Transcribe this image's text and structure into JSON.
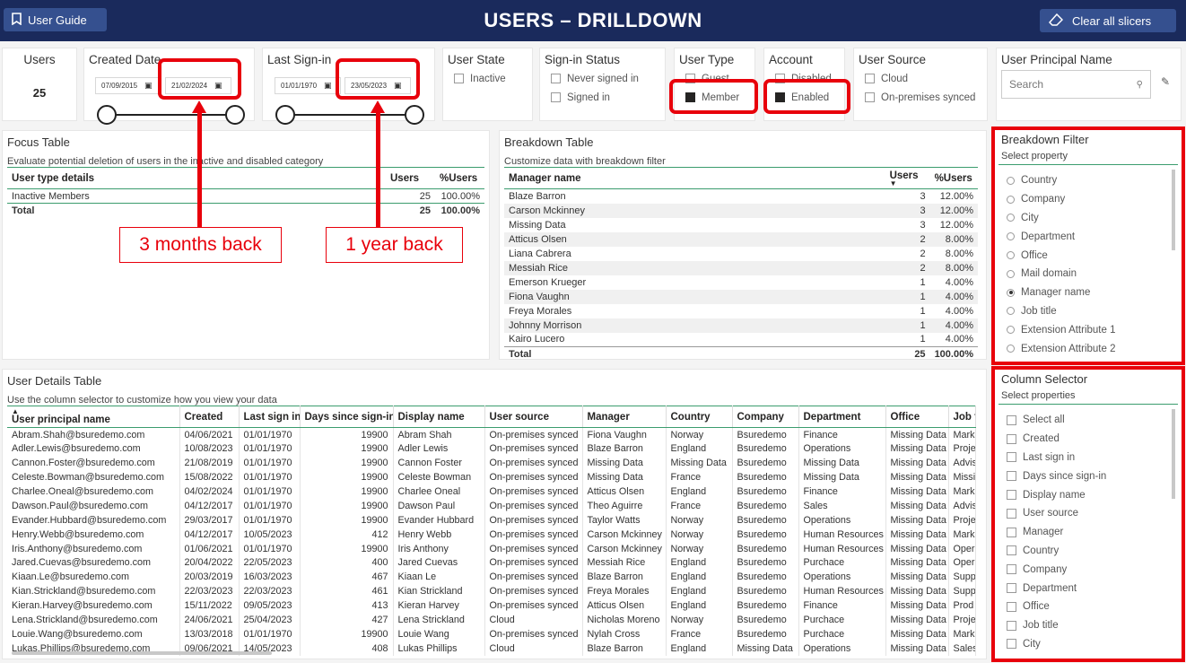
{
  "header": {
    "guide": "User Guide",
    "title": "USERS – DRILLDOWN",
    "clear": "Clear all slicers"
  },
  "users": {
    "title": "Users",
    "count": "25"
  },
  "created": {
    "title": "Created Date",
    "from": "07/09/2015",
    "to": "21/02/2024"
  },
  "lastsign": {
    "title": "Last Sign-in",
    "from": "01/01/1970",
    "to": "23/05/2023"
  },
  "userstate": {
    "title": "User State",
    "opts": [
      "Inactive"
    ]
  },
  "signin": {
    "title": "Sign-in Status",
    "opts": [
      "Never signed in",
      "Signed in"
    ]
  },
  "usertype": {
    "title": "User Type",
    "opts": [
      "Guest",
      "Member"
    ]
  },
  "account": {
    "title": "Account",
    "opts": [
      "Disabled",
      "Enabled"
    ]
  },
  "source": {
    "title": "User Source",
    "opts": [
      "Cloud",
      "On-premises synced"
    ]
  },
  "upn": {
    "title": "User Principal Name",
    "placeholder": "Search"
  },
  "callouts": {
    "c1": "3 months back",
    "c2": "1 year back"
  },
  "focus": {
    "title": "Focus Table",
    "sub": "Evaluate potential deletion of users in the inactive and disabled category",
    "cols": [
      "User type details",
      "Users",
      "%Users"
    ],
    "row": [
      "Inactive Members",
      "25",
      "100.00%"
    ],
    "total": [
      "Total",
      "25",
      "100.00%"
    ]
  },
  "breakdown": {
    "title": "Breakdown Table",
    "sub": "Customize data with breakdown filter",
    "cols": [
      "Manager name",
      "Users",
      "%Users"
    ],
    "rows": [
      [
        "Blaze Barron",
        "3",
        "12.00%"
      ],
      [
        "Carson Mckinney",
        "3",
        "12.00%"
      ],
      [
        "Missing Data",
        "3",
        "12.00%"
      ],
      [
        "Atticus Olsen",
        "2",
        "8.00%"
      ],
      [
        "Liana Cabrera",
        "2",
        "8.00%"
      ],
      [
        "Messiah Rice",
        "2",
        "8.00%"
      ],
      [
        "Emerson Krueger",
        "1",
        "4.00%"
      ],
      [
        "Fiona Vaughn",
        "1",
        "4.00%"
      ],
      [
        "Freya Morales",
        "1",
        "4.00%"
      ],
      [
        "Johnny Morrison",
        "1",
        "4.00%"
      ],
      [
        "Kairo Lucero",
        "1",
        "4.00%"
      ]
    ],
    "total": [
      "Total",
      "25",
      "100.00%"
    ]
  },
  "bfilter": {
    "title": "Breakdown Filter",
    "sub": "Select property",
    "opts": [
      "Country",
      "Company",
      "City",
      "Department",
      "Office",
      "Mail domain",
      "Manager name",
      "Job title",
      "Extension Attribute 1",
      "Extension Attribute 2"
    ],
    "selected": "Manager name"
  },
  "details": {
    "title": "User Details Table",
    "sub": "Use the column selector to customize how you view your data",
    "cols": [
      "User principal name",
      "Created",
      "Last sign in",
      "Days since sign-in",
      "Display name",
      "User source",
      "Manager",
      "Country",
      "Company",
      "Department",
      "Office",
      "Job t"
    ],
    "rows": [
      [
        "Abram.Shah@bsuredemo.com",
        "04/06/2021",
        "01/01/1970",
        "19900",
        "Abram Shah",
        "On-premises synced",
        "Fiona Vaughn",
        "Norway",
        "Bsuredemo",
        "Finance",
        "Missing Data",
        "Mark"
      ],
      [
        "Adler.Lewis@bsuredemo.com",
        "10/08/2023",
        "01/01/1970",
        "19900",
        "Adler Lewis",
        "On-premises synced",
        "Blaze Barron",
        "England",
        "Bsuredemo",
        "Operations",
        "Missing Data",
        "Proje"
      ],
      [
        "Cannon.Foster@bsuredemo.com",
        "21/08/2019",
        "01/01/1970",
        "19900",
        "Cannon Foster",
        "On-premises synced",
        "Missing Data",
        "Missing Data",
        "Bsuredemo",
        "Missing Data",
        "Missing Data",
        "Advis"
      ],
      [
        "Celeste.Bowman@bsuredemo.com",
        "15/08/2022",
        "01/01/1970",
        "19900",
        "Celeste Bowman",
        "On-premises synced",
        "Missing Data",
        "France",
        "Bsuredemo",
        "Missing Data",
        "Missing Data",
        "Missi"
      ],
      [
        "Charlee.Oneal@bsuredemo.com",
        "04/02/2024",
        "01/01/1970",
        "19900",
        "Charlee Oneal",
        "On-premises synced",
        "Atticus Olsen",
        "England",
        "Bsuredemo",
        "Finance",
        "Missing Data",
        "Mark"
      ],
      [
        "Dawson.Paul@bsuredemo.com",
        "04/12/2017",
        "01/01/1970",
        "19900",
        "Dawson Paul",
        "On-premises synced",
        "Theo Aguirre",
        "France",
        "Bsuredemo",
        "Sales",
        "Missing Data",
        "Advis"
      ],
      [
        "Evander.Hubbard@bsuredemo.com",
        "29/03/2017",
        "01/01/1970",
        "19900",
        "Evander Hubbard",
        "On-premises synced",
        "Taylor Watts",
        "Norway",
        "Bsuredemo",
        "Operations",
        "Missing Data",
        "Proje"
      ],
      [
        "Henry.Webb@bsuredemo.com",
        "04/12/2017",
        "10/05/2023",
        "412",
        "Henry Webb",
        "On-premises synced",
        "Carson Mckinney",
        "Norway",
        "Bsuredemo",
        "Human Resources",
        "Missing Data",
        "Mark"
      ],
      [
        "Iris.Anthony@bsuredemo.com",
        "01/06/2021",
        "01/01/1970",
        "19900",
        "Iris Anthony",
        "On-premises synced",
        "Carson Mckinney",
        "Norway",
        "Bsuredemo",
        "Human Resources",
        "Missing Data",
        "Oper"
      ],
      [
        "Jared.Cuevas@bsuredemo.com",
        "20/04/2022",
        "22/05/2023",
        "400",
        "Jared Cuevas",
        "On-premises synced",
        "Messiah Rice",
        "England",
        "Bsuredemo",
        "Purchace",
        "Missing Data",
        "Oper"
      ],
      [
        "Kiaan.Le@bsuredemo.com",
        "20/03/2019",
        "16/03/2023",
        "467",
        "Kiaan Le",
        "On-premises synced",
        "Blaze Barron",
        "England",
        "Bsuredemo",
        "Operations",
        "Missing Data",
        "Supp"
      ],
      [
        "Kian.Strickland@bsuredemo.com",
        "22/03/2023",
        "22/03/2023",
        "461",
        "Kian Strickland",
        "On-premises synced",
        "Freya Morales",
        "England",
        "Bsuredemo",
        "Human Resources",
        "Missing Data",
        "Supp"
      ],
      [
        "Kieran.Harvey@bsuredemo.com",
        "15/11/2022",
        "09/05/2023",
        "413",
        "Kieran Harvey",
        "On-premises synced",
        "Atticus Olsen",
        "England",
        "Bsuredemo",
        "Finance",
        "Missing Data",
        "Prod"
      ],
      [
        "Lena.Strickland@bsuredemo.com",
        "24/06/2021",
        "25/04/2023",
        "427",
        "Lena Strickland",
        "Cloud",
        "Nicholas Moreno",
        "Norway",
        "Bsuredemo",
        "Purchace",
        "Missing Data",
        "Proje"
      ],
      [
        "Louie.Wang@bsuredemo.com",
        "13/03/2018",
        "01/01/1970",
        "19900",
        "Louie Wang",
        "On-premises synced",
        "Nylah Cross",
        "France",
        "Bsuredemo",
        "Purchace",
        "Missing Data",
        "Mark"
      ],
      [
        "Lukas.Phillips@bsuredemo.com",
        "09/06/2021",
        "14/05/2023",
        "408",
        "Lukas Phillips",
        "Cloud",
        "Blaze Barron",
        "England",
        "Missing Data",
        "Operations",
        "Missing Data",
        "Sales"
      ]
    ]
  },
  "colsel": {
    "title": "Column Selector",
    "sub": "Select properties",
    "opts": [
      "Select all",
      "Created",
      "Last sign in",
      "Days since sign-in",
      "Display name",
      "User source",
      "Manager",
      "Country",
      "Company",
      "Department",
      "Office",
      "Job title",
      "City"
    ]
  }
}
